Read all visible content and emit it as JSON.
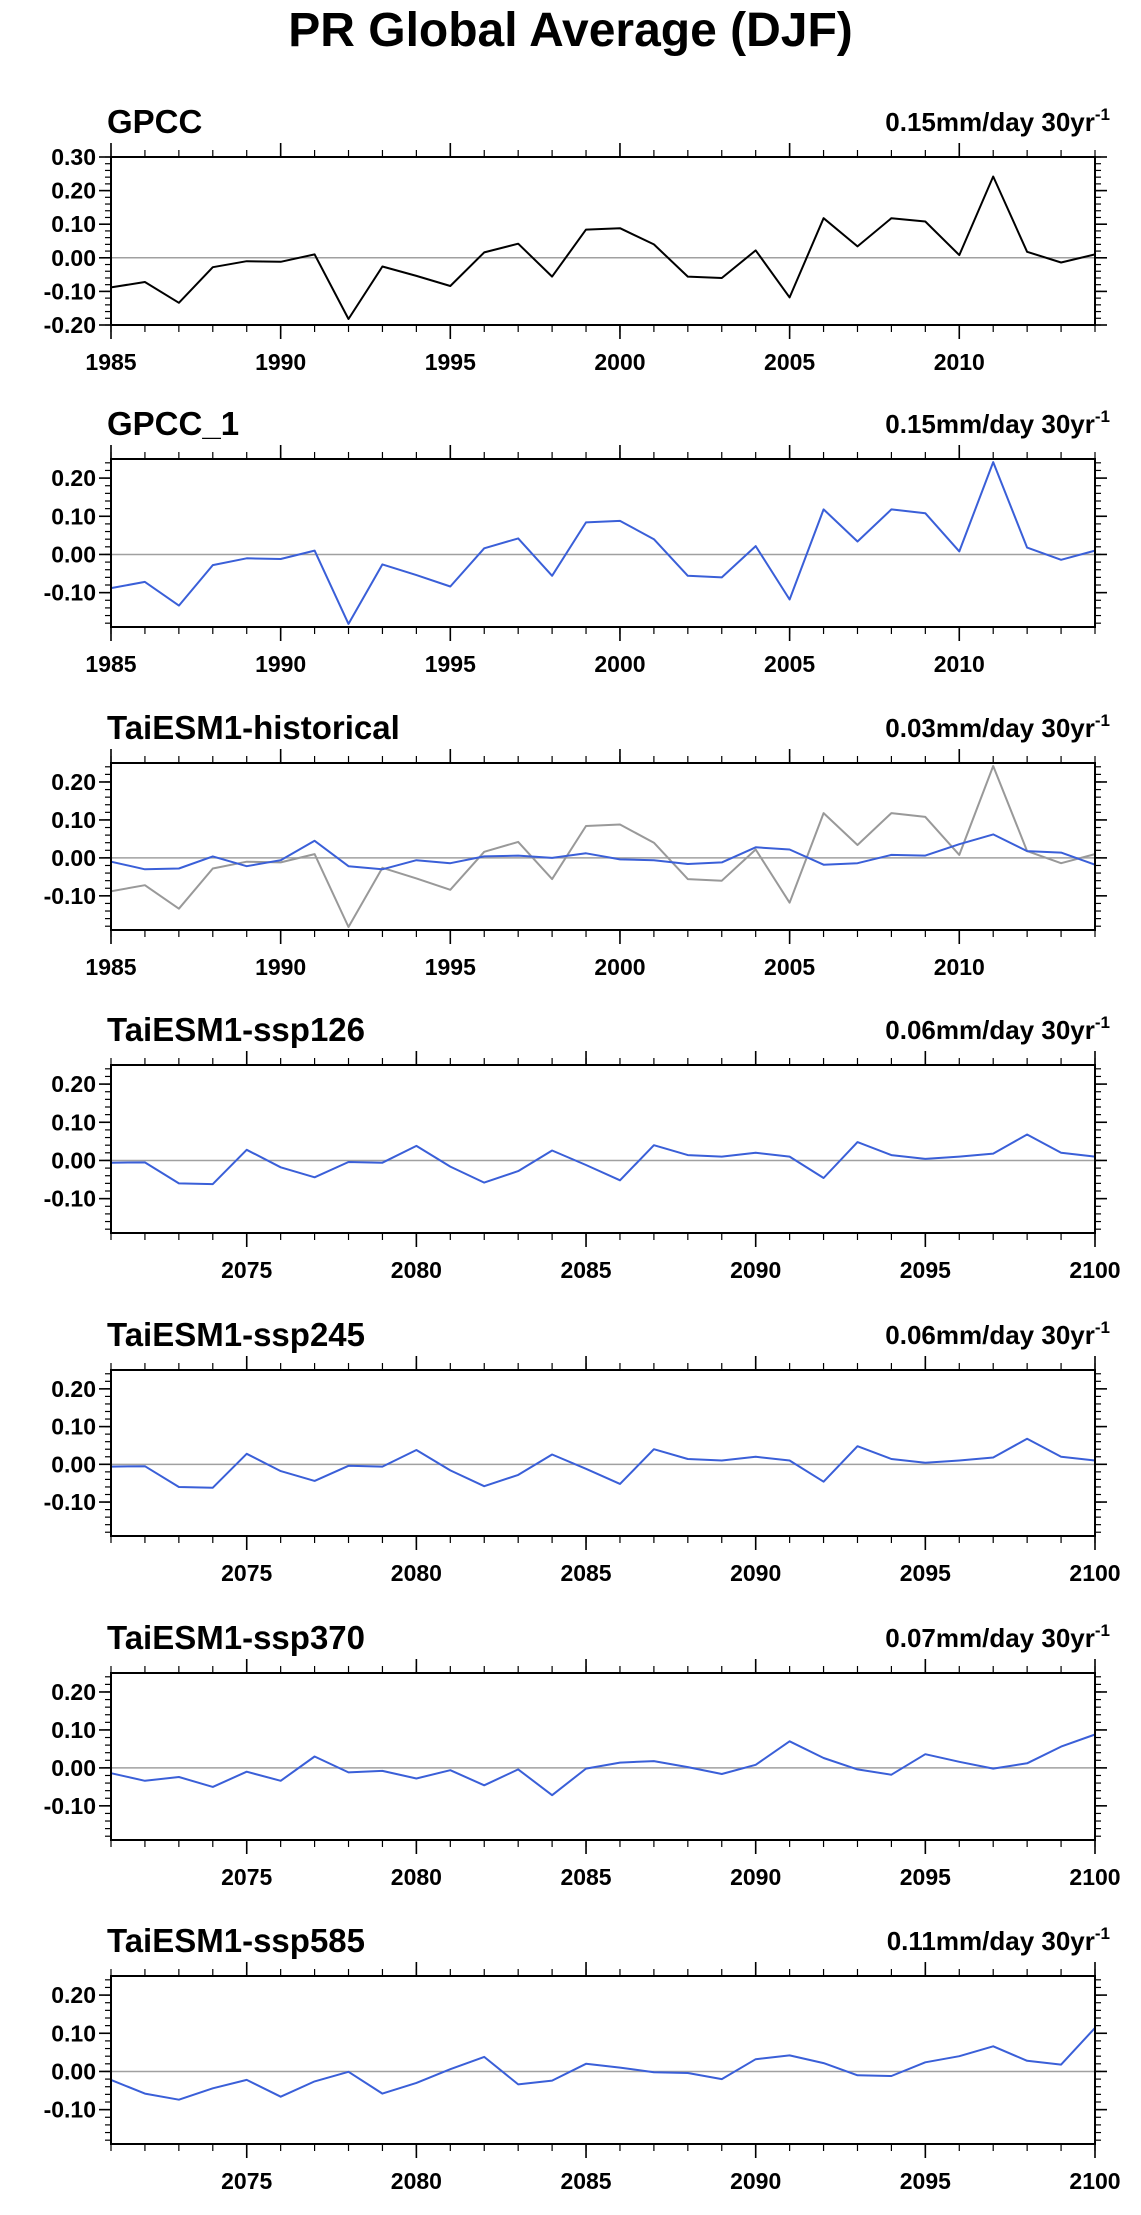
{
  "page": {
    "title": "PR Global Average (DJF)"
  },
  "colors": {
    "obs": "#000000",
    "obs_ref": "#999999",
    "model": "#3a5fd8",
    "zero_line": "#a0a0a0"
  },
  "chart_data": [
    {
      "type": "line",
      "title": "GPCC",
      "annotation": {
        "value": "0.15mm/day 30yr",
        "superscript": "-1"
      },
      "xlim": [
        1985,
        2014
      ],
      "ylim": [
        -0.2,
        0.3
      ],
      "xticks": [
        1985,
        1990,
        1995,
        2000,
        2005,
        2010
      ],
      "xtick_labels": [
        "1985",
        "1990",
        "1995",
        "2000",
        "2005",
        "2010"
      ],
      "yticks": [
        -0.2,
        -0.1,
        0.0,
        0.1,
        0.2,
        0.3
      ],
      "ytick_labels": [
        "-0.20",
        "-0.10",
        "0.00",
        "0.10",
        "0.20",
        "0.30"
      ],
      "x": [
        1985,
        1986,
        1987,
        1988,
        1989,
        1990,
        1991,
        1992,
        1993,
        1994,
        1995,
        1996,
        1997,
        1998,
        1999,
        2000,
        2001,
        2002,
        2003,
        2004,
        2005,
        2006,
        2007,
        2008,
        2009,
        2010,
        2011,
        2012,
        2013,
        2014
      ],
      "series": [
        {
          "color": "#000000",
          "values": [
            -0.088,
            -0.072,
            -0.134,
            -0.028,
            -0.01,
            -0.012,
            0.01,
            -0.182,
            -0.026,
            -0.054,
            -0.084,
            0.016,
            0.042,
            -0.056,
            0.084,
            0.088,
            0.04,
            -0.056,
            -0.06,
            0.022,
            -0.118,
            0.118,
            0.034,
            0.118,
            0.108,
            0.008,
            0.242,
            0.018,
            -0.014,
            0.01
          ]
        }
      ]
    },
    {
      "type": "line",
      "title": "GPCC_1",
      "annotation": {
        "value": "0.15mm/day 30yr",
        "superscript": "-1"
      },
      "xlim": [
        1985,
        2014
      ],
      "ylim": [
        -0.19,
        0.25
      ],
      "xticks": [
        1985,
        1990,
        1995,
        2000,
        2005,
        2010
      ],
      "xtick_labels": [
        "1985",
        "1990",
        "1995",
        "2000",
        "2005",
        "2010"
      ],
      "yticks": [
        -0.1,
        0.0,
        0.1,
        0.2
      ],
      "ytick_labels": [
        "-0.10",
        "0.00",
        "0.10",
        "0.20"
      ],
      "x": [
        1985,
        1986,
        1987,
        1988,
        1989,
        1990,
        1991,
        1992,
        1993,
        1994,
        1995,
        1996,
        1997,
        1998,
        1999,
        2000,
        2001,
        2002,
        2003,
        2004,
        2005,
        2006,
        2007,
        2008,
        2009,
        2010,
        2011,
        2012,
        2013,
        2014
      ],
      "series": [
        {
          "color": "#3a5fd8",
          "values": [
            -0.088,
            -0.072,
            -0.134,
            -0.028,
            -0.01,
            -0.012,
            0.01,
            -0.182,
            -0.026,
            -0.054,
            -0.084,
            0.016,
            0.042,
            -0.056,
            0.084,
            0.088,
            0.04,
            -0.056,
            -0.06,
            0.022,
            -0.118,
            0.118,
            0.034,
            0.118,
            0.108,
            0.008,
            0.242,
            0.018,
            -0.014,
            0.01
          ]
        }
      ]
    },
    {
      "type": "line",
      "title": "TaiESM1-historical",
      "annotation": {
        "value": "0.03mm/day 30yr",
        "superscript": "-1"
      },
      "xlim": [
        1985,
        2014
      ],
      "ylim": [
        -0.19,
        0.25
      ],
      "xticks": [
        1985,
        1990,
        1995,
        2000,
        2005,
        2010
      ],
      "xtick_labels": [
        "1985",
        "1990",
        "1995",
        "2000",
        "2005",
        "2010"
      ],
      "yticks": [
        -0.1,
        0.0,
        0.1,
        0.2
      ],
      "ytick_labels": [
        "-0.10",
        "0.00",
        "0.10",
        "0.20"
      ],
      "x": [
        1985,
        1986,
        1987,
        1988,
        1989,
        1990,
        1991,
        1992,
        1993,
        1994,
        1995,
        1996,
        1997,
        1998,
        1999,
        2000,
        2001,
        2002,
        2003,
        2004,
        2005,
        2006,
        2007,
        2008,
        2009,
        2010,
        2011,
        2012,
        2013,
        2014
      ],
      "series": [
        {
          "color": "#999999",
          "values": [
            -0.088,
            -0.072,
            -0.134,
            -0.028,
            -0.01,
            -0.012,
            0.01,
            -0.182,
            -0.026,
            -0.054,
            -0.084,
            0.016,
            0.042,
            -0.056,
            0.084,
            0.088,
            0.04,
            -0.056,
            -0.06,
            0.022,
            -0.118,
            0.118,
            0.034,
            0.118,
            0.108,
            0.008,
            0.242,
            0.018,
            -0.014,
            0.01
          ]
        },
        {
          "color": "#3a5fd8",
          "values": [
            -0.01,
            -0.03,
            -0.028,
            0.004,
            -0.022,
            -0.006,
            0.045,
            -0.022,
            -0.03,
            -0.006,
            -0.014,
            0.004,
            0.006,
            0.0,
            0.012,
            -0.004,
            -0.006,
            -0.016,
            -0.012,
            0.028,
            0.022,
            -0.018,
            -0.014,
            0.008,
            0.006,
            0.036,
            0.062,
            0.018,
            0.014,
            -0.018
          ]
        }
      ]
    },
    {
      "type": "line",
      "title": "TaiESM1-ssp126",
      "annotation": {
        "value": "0.06mm/day 30yr",
        "superscript": "-1"
      },
      "xlim": [
        2071,
        2100
      ],
      "ylim": [
        -0.19,
        0.25
      ],
      "xticks": [
        2075,
        2080,
        2085,
        2090,
        2095,
        2100
      ],
      "xtick_labels": [
        "2075",
        "2080",
        "2085",
        "2090",
        "2095",
        "2100"
      ],
      "yticks": [
        -0.1,
        0.0,
        0.1,
        0.2
      ],
      "ytick_labels": [
        "-0.10",
        "0.00",
        "0.10",
        "0.20"
      ],
      "x": [
        2071,
        2072,
        2073,
        2074,
        2075,
        2076,
        2077,
        2078,
        2079,
        2080,
        2081,
        2082,
        2083,
        2084,
        2085,
        2086,
        2087,
        2088,
        2089,
        2090,
        2091,
        2092,
        2093,
        2094,
        2095,
        2096,
        2097,
        2098,
        2099,
        2100
      ],
      "series": [
        {
          "color": "#3a5fd8",
          "values": [
            -0.006,
            -0.005,
            -0.06,
            -0.062,
            0.028,
            -0.018,
            -0.044,
            -0.004,
            -0.006,
            0.038,
            -0.016,
            -0.058,
            -0.028,
            0.026,
            -0.012,
            -0.052,
            0.04,
            0.014,
            0.01,
            0.02,
            0.01,
            -0.046,
            0.048,
            0.014,
            0.004,
            0.01,
            0.018,
            0.068,
            0.02,
            0.01
          ]
        }
      ]
    },
    {
      "type": "line",
      "title": "TaiESM1-ssp245",
      "annotation": {
        "value": "0.06mm/day 30yr",
        "superscript": "-1"
      },
      "xlim": [
        2071,
        2100
      ],
      "ylim": [
        -0.19,
        0.25
      ],
      "xticks": [
        2075,
        2080,
        2085,
        2090,
        2095,
        2100
      ],
      "xtick_labels": [
        "2075",
        "2080",
        "2085",
        "2090",
        "2095",
        "2100"
      ],
      "yticks": [
        -0.1,
        0.0,
        0.1,
        0.2
      ],
      "ytick_labels": [
        "-0.10",
        "0.00",
        "0.10",
        "0.20"
      ],
      "x": [
        2071,
        2072,
        2073,
        2074,
        2075,
        2076,
        2077,
        2078,
        2079,
        2080,
        2081,
        2082,
        2083,
        2084,
        2085,
        2086,
        2087,
        2088,
        2089,
        2090,
        2091,
        2092,
        2093,
        2094,
        2095,
        2096,
        2097,
        2098,
        2099,
        2100
      ],
      "series": [
        {
          "color": "#3a5fd8",
          "values": [
            -0.006,
            -0.005,
            -0.06,
            -0.062,
            0.028,
            -0.018,
            -0.044,
            -0.004,
            -0.006,
            0.038,
            -0.016,
            -0.058,
            -0.028,
            0.026,
            -0.012,
            -0.052,
            0.04,
            0.014,
            0.01,
            0.02,
            0.01,
            -0.046,
            0.048,
            0.014,
            0.004,
            0.01,
            0.018,
            0.068,
            0.02,
            0.01
          ]
        }
      ]
    },
    {
      "type": "line",
      "title": "TaiESM1-ssp370",
      "annotation": {
        "value": "0.07mm/day 30yr",
        "superscript": "-1"
      },
      "xlim": [
        2071,
        2100
      ],
      "ylim": [
        -0.19,
        0.25
      ],
      "xticks": [
        2075,
        2080,
        2085,
        2090,
        2095,
        2100
      ],
      "xtick_labels": [
        "2075",
        "2080",
        "2085",
        "2090",
        "2095",
        "2100"
      ],
      "yticks": [
        -0.1,
        0.0,
        0.1,
        0.2
      ],
      "ytick_labels": [
        "-0.10",
        "0.00",
        "0.10",
        "0.20"
      ],
      "x": [
        2071,
        2072,
        2073,
        2074,
        2075,
        2076,
        2077,
        2078,
        2079,
        2080,
        2081,
        2082,
        2083,
        2084,
        2085,
        2086,
        2087,
        2088,
        2089,
        2090,
        2091,
        2092,
        2093,
        2094,
        2095,
        2096,
        2097,
        2098,
        2099,
        2100
      ],
      "series": [
        {
          "color": "#3a5fd8",
          "values": [
            -0.014,
            -0.034,
            -0.024,
            -0.05,
            -0.01,
            -0.034,
            0.03,
            -0.012,
            -0.008,
            -0.028,
            -0.006,
            -0.046,
            -0.004,
            -0.072,
            -0.002,
            0.014,
            0.018,
            0.002,
            -0.016,
            0.008,
            0.07,
            0.026,
            -0.004,
            -0.018,
            0.036,
            0.016,
            -0.002,
            0.012,
            0.056,
            0.088
          ]
        }
      ]
    },
    {
      "type": "line",
      "title": "TaiESM1-ssp585",
      "annotation": {
        "value": "0.11mm/day 30yr",
        "superscript": "-1"
      },
      "xlim": [
        2071,
        2100
      ],
      "ylim": [
        -0.19,
        0.25
      ],
      "xticks": [
        2075,
        2080,
        2085,
        2090,
        2095,
        2100
      ],
      "xtick_labels": [
        "2075",
        "2080",
        "2085",
        "2090",
        "2095",
        "2100"
      ],
      "yticks": [
        -0.1,
        0.0,
        0.1,
        0.2
      ],
      "ytick_labels": [
        "-0.10",
        "0.00",
        "0.10",
        "0.20"
      ],
      "x": [
        2071,
        2072,
        2073,
        2074,
        2075,
        2076,
        2077,
        2078,
        2079,
        2080,
        2081,
        2082,
        2083,
        2084,
        2085,
        2086,
        2087,
        2088,
        2089,
        2090,
        2091,
        2092,
        2093,
        2094,
        2095,
        2096,
        2097,
        2098,
        2099,
        2100
      ],
      "series": [
        {
          "color": "#3a5fd8",
          "values": [
            -0.022,
            -0.058,
            -0.074,
            -0.044,
            -0.022,
            -0.066,
            -0.026,
            -0.001,
            -0.058,
            -0.03,
            0.006,
            0.038,
            -0.034,
            -0.024,
            0.02,
            0.01,
            -0.002,
            -0.004,
            -0.02,
            0.032,
            0.042,
            0.022,
            -0.01,
            -0.012,
            0.024,
            0.04,
            0.066,
            0.028,
            0.018,
            0.114
          ]
        }
      ]
    }
  ]
}
